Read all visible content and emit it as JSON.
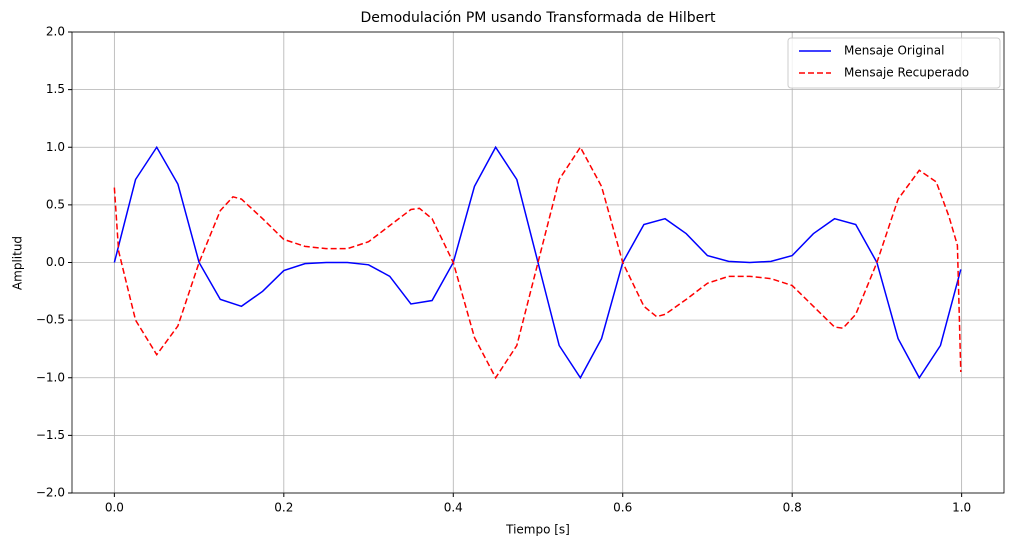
{
  "chart_data": {
    "type": "line",
    "title": "Demodulación PM usando Transformada de Hilbert",
    "x_label": "Tiempo [s]",
    "y_label": "Amplitud",
    "xlim": [
      -0.05,
      1.05
    ],
    "ylim": [
      -2,
      2
    ],
    "xticks": [
      {
        "value": 0,
        "label": "0.0"
      },
      0.2,
      0.4,
      0.6,
      0.8,
      {
        "value": 1,
        "label": "1.0"
      }
    ],
    "yticks": [
      {
        "value": -2,
        "label": "−2.0"
      },
      {
        "value": -1.5,
        "label": "−1.5"
      },
      {
        "value": -1,
        "label": "−1.0"
      },
      {
        "value": -0.5,
        "label": "−0.5"
      },
      {
        "value": 0,
        "label": "0.0"
      },
      0.5,
      {
        "value": 1,
        "label": "1.0"
      },
      1.5,
      {
        "value": 2,
        "label": "2.0"
      }
    ],
    "grid": true,
    "legend": "upper right",
    "series": [
      {
        "name": "Mensaje Original",
        "color": "#0000ff",
        "dash": "solid",
        "x": [
          0,
          0.025,
          0.05,
          0.075,
          0.1,
          0.125,
          0.15,
          0.175,
          0.2,
          0.225,
          0.25,
          0.275,
          0.3,
          0.325,
          0.35,
          0.375,
          0.4,
          0.425,
          0.45,
          0.475,
          0.5,
          0.525,
          0.55,
          0.575,
          0.6,
          0.625,
          0.65,
          0.675,
          0.7,
          0.725,
          0.75,
          0.775,
          0.8,
          0.825,
          0.85,
          0.875,
          0.9,
          0.925,
          0.95,
          0.975,
          0.999
        ],
        "values": [
          0,
          0.72,
          1.0,
          0.68,
          0.0,
          -0.32,
          -0.38,
          -0.25,
          -0.07,
          -0.01,
          0,
          0,
          -0.02,
          -0.12,
          -0.36,
          -0.33,
          0.0,
          0.66,
          1.0,
          0.72,
          0.0,
          -0.72,
          -1.0,
          -0.66,
          0.0,
          0.33,
          0.38,
          0.25,
          0.06,
          0.01,
          0,
          0.01,
          0.06,
          0.25,
          0.38,
          0.33,
          0.0,
          -0.66,
          -1.0,
          -0.72,
          -0.06
        ]
      },
      {
        "name": "Mensaje Recuperado",
        "color": "#ff0000",
        "dash": "dashed",
        "x": [
          0,
          0.005,
          0.025,
          0.05,
          0.075,
          0.1,
          0.125,
          0.14,
          0.15,
          0.175,
          0.2,
          0.225,
          0.25,
          0.275,
          0.3,
          0.325,
          0.35,
          0.36,
          0.375,
          0.4,
          0.425,
          0.45,
          0.475,
          0.5,
          0.525,
          0.55,
          0.575,
          0.6,
          0.625,
          0.64,
          0.65,
          0.675,
          0.7,
          0.725,
          0.75,
          0.775,
          0.8,
          0.825,
          0.85,
          0.86,
          0.875,
          0.9,
          0.925,
          0.95,
          0.97,
          0.985,
          0.995,
          0.999
        ],
        "values": [
          0.65,
          0.1,
          -0.5,
          -0.8,
          -0.55,
          0.0,
          0.45,
          0.57,
          0.55,
          0.38,
          0.2,
          0.14,
          0.12,
          0.12,
          0.18,
          0.32,
          0.46,
          0.47,
          0.38,
          0.0,
          -0.65,
          -1.0,
          -0.72,
          0.0,
          0.72,
          1.0,
          0.66,
          0.0,
          -0.38,
          -0.47,
          -0.45,
          -0.32,
          -0.18,
          -0.12,
          -0.12,
          -0.14,
          -0.2,
          -0.38,
          -0.56,
          -0.57,
          -0.45,
          0.0,
          0.55,
          0.8,
          0.7,
          0.4,
          0.15,
          -0.95
        ]
      }
    ]
  }
}
